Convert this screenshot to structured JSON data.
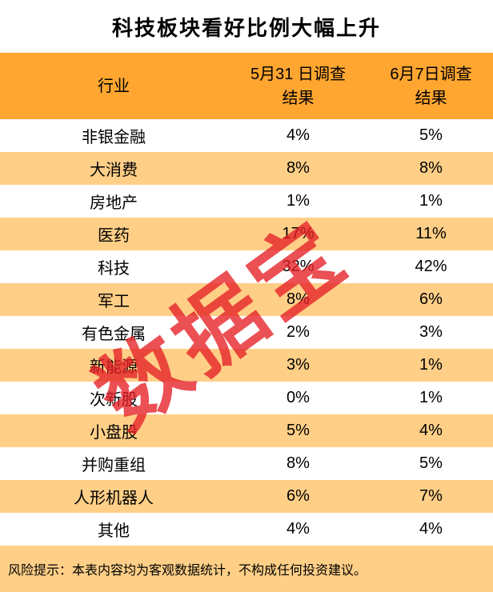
{
  "title": "科技板块看好比例大幅上升",
  "watermark": "数据宝",
  "footer": {
    "risk_note": "风险提示：本表内容均为客观数据统计，不构成任何投资建议。"
  },
  "colors": {
    "header": "#FFA630",
    "rowAlt": "#FFCF87",
    "watermark": "#E62026"
  },
  "chart_data": {
    "type": "table",
    "title": "科技板块看好比例大幅上升",
    "legend_position": "none",
    "columns": [
      {
        "label": "行业"
      },
      {
        "label": "5月31 日调查结果",
        "line1": "5月31 日调查",
        "line2": "结果"
      },
      {
        "label": "6月7日调查结果",
        "line1": "6月7日调查",
        "line2": "结果"
      }
    ],
    "rows": [
      [
        "非银金融",
        "4%",
        "5%"
      ],
      [
        "大消费",
        "8%",
        "8%"
      ],
      [
        "房地产",
        "1%",
        "1%"
      ],
      [
        "医药",
        "17%",
        "11%"
      ],
      [
        "科技",
        "32%",
        "42%"
      ],
      [
        "军工",
        "8%",
        "6%"
      ],
      [
        "有色金属",
        "2%",
        "3%"
      ],
      [
        "新能源",
        "3%",
        "1%"
      ],
      [
        "次新股",
        "0%",
        "1%"
      ],
      [
        "小盘股",
        "5%",
        "4%"
      ],
      [
        "并购重组",
        "8%",
        "5%"
      ],
      [
        "人形机器人",
        "6%",
        "7%"
      ],
      [
        "其他",
        "4%",
        "4%"
      ]
    ]
  }
}
